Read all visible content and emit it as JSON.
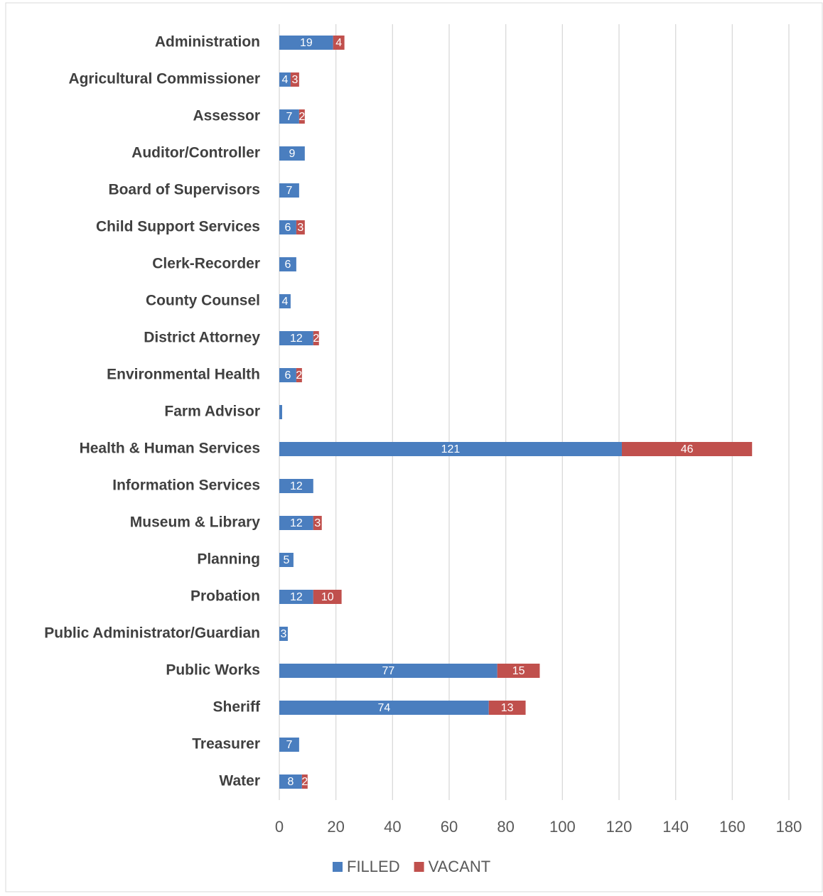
{
  "chart_data": {
    "type": "stacked_barh",
    "categories": [
      "Administration",
      "Agricultural Commissioner",
      "Assessor",
      "Auditor/Controller",
      "Board of Supervisors",
      "Child Support Services",
      "Clerk-Recorder",
      "County Counsel",
      "District Attorney",
      "Environmental Health",
      "Farm Advisor",
      "Health & Human Services",
      "Information Services",
      "Museum & Library",
      "Planning",
      "Probation",
      "Public Administrator/Guardian",
      "Public Works",
      "Sheriff",
      "Treasurer",
      "Water"
    ],
    "series": [
      {
        "name": "FILLED",
        "color": "#4a7ebf",
        "values": [
          19,
          4,
          7,
          9,
          7,
          6,
          6,
          4,
          12,
          6,
          1,
          121,
          12,
          12,
          5,
          12,
          3,
          77,
          74,
          7,
          8
        ],
        "value_labels": [
          19,
          4,
          7,
          9,
          7,
          6,
          6,
          4,
          12,
          6,
          null,
          121,
          12,
          12,
          5,
          12,
          3,
          77,
          74,
          7,
          8
        ]
      },
      {
        "name": "VACANT",
        "color": "#c0504d",
        "values": [
          4,
          3,
          2,
          null,
          null,
          3,
          null,
          null,
          2,
          2,
          null,
          46,
          null,
          3,
          null,
          10,
          null,
          15,
          13,
          null,
          2
        ]
      }
    ],
    "xlim": [
      0,
      180
    ],
    "xticks": [
      0,
      20,
      40,
      60,
      80,
      100,
      120,
      140,
      160,
      180
    ],
    "grid": true,
    "legend": "bottom"
  }
}
